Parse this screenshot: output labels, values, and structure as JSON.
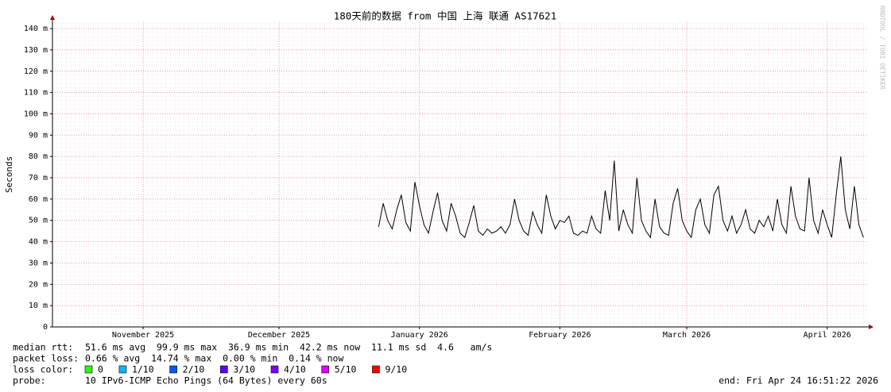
{
  "chart_data": {
    "type": "line",
    "title": "180天前的数据 from 中国 上海 联通 AS17621",
    "y_label": "Seconds",
    "watermark": "RRDTOOL / TOBI OETIKER",
    "xlim": [
      -180,
      0
    ],
    "xticks": [
      {
        "value": -160,
        "label": "November 2025"
      },
      {
        "value": -130,
        "label": "December 2025"
      },
      {
        "value": -99,
        "label": "January 2026"
      },
      {
        "value": -68,
        "label": "February 2026"
      },
      {
        "value": -40,
        "label": "March 2026"
      },
      {
        "value": -9,
        "label": "April 2026"
      }
    ],
    "ylim": [
      0,
      143
    ],
    "yticks": [
      {
        "value": 0,
        "label": "0"
      },
      {
        "value": 10,
        "label": "10 m"
      },
      {
        "value": 20,
        "label": "20 m"
      },
      {
        "value": 30,
        "label": "30 m"
      },
      {
        "value": 40,
        "label": "40 m"
      },
      {
        "value": 50,
        "label": "50 m"
      },
      {
        "value": 60,
        "label": "60 m"
      },
      {
        "value": 70,
        "label": "70 m"
      },
      {
        "value": 80,
        "label": "80 m"
      },
      {
        "value": 90,
        "label": "90 m"
      },
      {
        "value": 100,
        "label": "100 m"
      },
      {
        "value": 110,
        "label": "110 m"
      },
      {
        "value": 120,
        "label": "120 m"
      },
      {
        "value": 130,
        "label": "130 m"
      },
      {
        "value": 140,
        "label": "140 m"
      }
    ],
    "grid": true,
    "x": [
      -108,
      -107,
      -106,
      -105,
      -104,
      -103,
      -102,
      -101,
      -100,
      -99,
      -98,
      -97,
      -96,
      -95,
      -94,
      -93,
      -92,
      -91,
      -90,
      -89,
      -88,
      -87,
      -86,
      -85,
      -84,
      -83,
      -82,
      -81,
      -80,
      -79,
      -78,
      -77,
      -76,
      -75,
      -74,
      -73,
      -72,
      -71,
      -70,
      -69,
      -68,
      -67,
      -66,
      -65,
      -64,
      -63,
      -62,
      -61,
      -60,
      -59,
      -58,
      -57,
      -56,
      -55,
      -54,
      -53,
      -52,
      -51,
      -50,
      -49,
      -48,
      -47,
      -46,
      -45,
      -44,
      -43,
      -42,
      -41,
      -40,
      -39,
      -38,
      -37,
      -36,
      -35,
      -34,
      -33,
      -32,
      -31,
      -30,
      -29,
      -28,
      -27,
      -26,
      -25,
      -24,
      -23,
      -22,
      -21,
      -20,
      -19,
      -18,
      -17,
      -16,
      -15,
      -14,
      -13,
      -12,
      -11,
      -10,
      -9,
      -8,
      -7,
      -6,
      -5,
      -4,
      -3,
      -2,
      -1
    ],
    "series": [
      {
        "color": "#000000",
        "values": [
          47,
          58,
          50,
          46,
          55,
          62,
          49,
          45,
          68,
          57,
          48,
          44,
          54,
          63,
          50,
          45,
          58,
          52,
          44,
          42,
          49,
          57,
          45,
          43,
          46,
          44,
          45,
          47,
          44,
          48,
          60,
          50,
          45,
          43,
          54,
          48,
          44,
          62,
          52,
          46,
          50,
          49,
          52,
          44,
          43,
          45,
          44,
          52,
          46,
          44,
          64,
          50,
          78,
          45,
          55,
          48,
          44,
          70,
          50,
          45,
          42,
          60,
          47,
          44,
          43,
          58,
          65,
          50,
          45,
          42,
          55,
          60,
          48,
          44,
          62,
          66,
          50,
          45,
          52,
          44,
          48,
          55,
          46,
          44,
          50,
          47,
          52,
          45,
          60,
          48,
          44,
          66,
          52,
          46,
          45,
          70,
          50,
          44,
          55,
          48,
          42,
          62,
          80,
          55,
          46,
          66,
          48,
          42
        ]
      }
    ],
    "stats": [
      {
        "label": "median rtt:",
        "text": "51.6 ms avg  99.9 ms max  36.9 ms min  42.2 ms now  11.1 ms sd  4.6   am/s"
      },
      {
        "label": "packet loss:",
        "text": "0.66 % avg  14.74 % max  0.00 % min  0.14 % now"
      }
    ],
    "loss_label": "loss color:",
    "loss_colors": [
      {
        "label": "0",
        "color": "#26ff00"
      },
      {
        "label": "1/10",
        "color": "#00b8ff"
      },
      {
        "label": "2/10",
        "color": "#0059ff"
      },
      {
        "label": "3/10",
        "color": "#5e00ff"
      },
      {
        "label": "4/10",
        "color": "#7e00ff"
      },
      {
        "label": "5/10",
        "color": "#dd00ff"
      },
      {
        "label": "9/10",
        "color": "#ff0000"
      }
    ],
    "probe_label": "probe:",
    "probe_text": "10 IPv6-ICMP Echo Pings (64 Bytes) every 60s",
    "end_text": "end: Fri Apr 24 16:51:22 2026"
  }
}
